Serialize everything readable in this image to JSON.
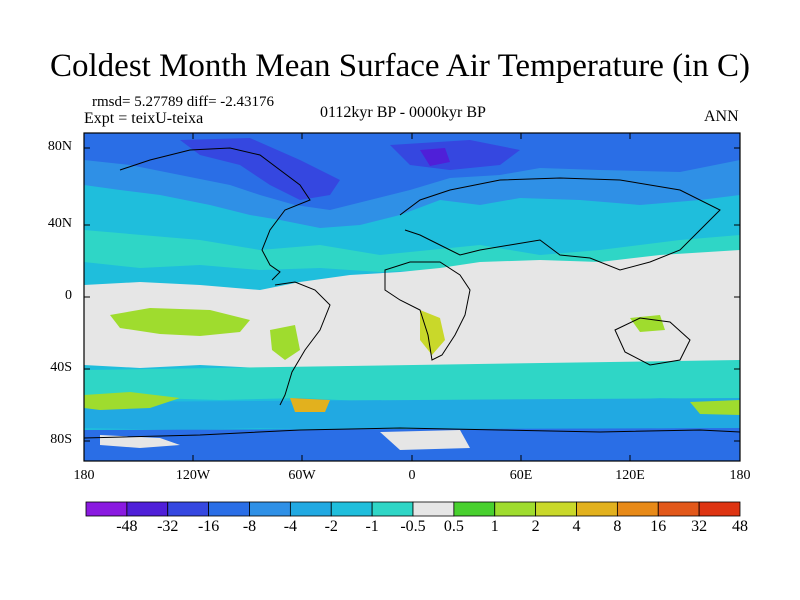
{
  "title": "Coldest Month Mean Surface Air Temperature (in C)",
  "stats": "rmsd= 5.27789 diff= -2.43176",
  "experiment": "Expt = teixU-teixa",
  "period": "0112kyr BP - 0000kyr BP",
  "season": "ANN",
  "lat_labels": [
    "80N",
    "40N",
    "0",
    "40S",
    "80S"
  ],
  "lon_labels": [
    "180",
    "120W",
    "60W",
    "0",
    "60E",
    "120E",
    "180"
  ],
  "colorbar": {
    "labels": [
      "-48",
      "-32",
      "-16",
      "-8",
      "-4",
      "-2",
      "-1",
      "-0.5",
      "0.5",
      "1",
      "2",
      "4",
      "8",
      "16",
      "32",
      "48"
    ],
    "colors": [
      "#8a1ae0",
      "#4f1fd8",
      "#3547e0",
      "#2a6ee6",
      "#2f90e6",
      "#21a9e2",
      "#1fbedc",
      "#2fd6c6",
      "#e6e6e6",
      "#48d02e",
      "#9fdc2e",
      "#c9d82a",
      "#e2b11e",
      "#e88a18",
      "#e2581a",
      "#de3412"
    ]
  }
}
